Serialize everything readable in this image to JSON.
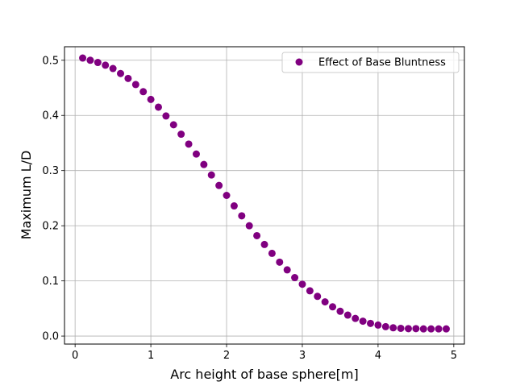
{
  "chart_data": {
    "type": "scatter",
    "title": "",
    "xlabel": "Arc height of base sphere[m]",
    "ylabel": "Maximum L/D",
    "xlim": [
      -0.14,
      5.14
    ],
    "ylim": [
      -0.0145,
      0.5245
    ],
    "xticks": [
      0,
      1,
      2,
      3,
      4,
      5
    ],
    "xtick_labels": [
      "0",
      "1",
      "2",
      "3",
      "4",
      "5"
    ],
    "yticks": [
      0.0,
      0.1,
      0.2,
      0.3,
      0.4,
      0.5
    ],
    "ytick_labels": [
      "0.0",
      "0.1",
      "0.2",
      "0.3",
      "0.4",
      "0.5"
    ],
    "grid": true,
    "legend_position": "upper-right",
    "series": [
      {
        "name": "Effect of Base Bluntness",
        "color": "#800080",
        "marker": "circle",
        "x": [
          0.1,
          0.2,
          0.3,
          0.4,
          0.5,
          0.6,
          0.7,
          0.8,
          0.9,
          1.0,
          1.1,
          1.2,
          1.3,
          1.4,
          1.5,
          1.6,
          1.7,
          1.8,
          1.9,
          2.0,
          2.1,
          2.2,
          2.3,
          2.4,
          2.5,
          2.6,
          2.7,
          2.8,
          2.9,
          3.0,
          3.1,
          3.2,
          3.3,
          3.4,
          3.5,
          3.6,
          3.7,
          3.8,
          3.9,
          4.0,
          4.1,
          4.2,
          4.3,
          4.4,
          4.5,
          4.6,
          4.7,
          4.8,
          4.9
        ],
        "y": [
          0.504,
          0.5,
          0.496,
          0.491,
          0.485,
          0.476,
          0.467,
          0.456,
          0.443,
          0.429,
          0.415,
          0.399,
          0.383,
          0.366,
          0.348,
          0.33,
          0.311,
          0.292,
          0.273,
          0.255,
          0.236,
          0.218,
          0.2,
          0.182,
          0.166,
          0.15,
          0.134,
          0.12,
          0.106,
          0.094,
          0.082,
          0.072,
          0.062,
          0.053,
          0.045,
          0.038,
          0.032,
          0.027,
          0.023,
          0.02,
          0.017,
          0.015,
          0.014,
          0.0135,
          0.0135,
          0.013,
          0.013,
          0.013,
          0.013
        ]
      }
    ]
  }
}
